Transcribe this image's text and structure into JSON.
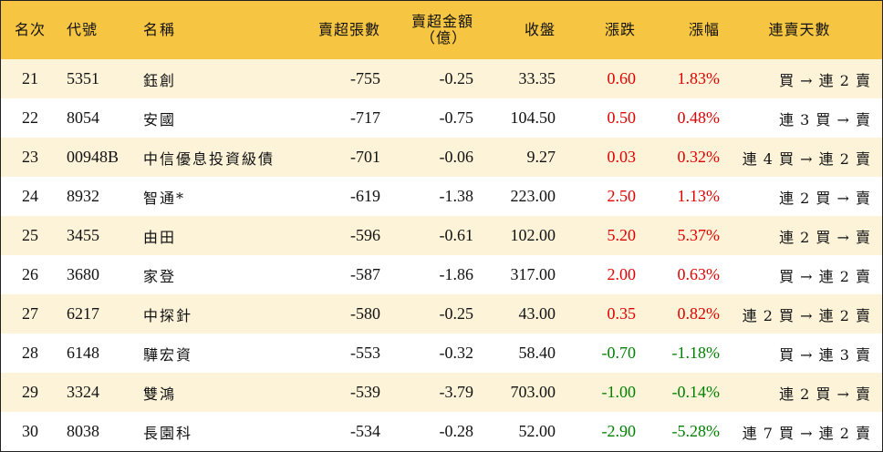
{
  "header": {
    "rank": "名次",
    "code": "代號",
    "name": "名稱",
    "net_sell_lots": "賣超張數",
    "net_sell_amount_line1": "賣超金額",
    "net_sell_amount_line2": "（億）",
    "close": "收盤",
    "change": "漲跌",
    "change_pct": "漲幅",
    "streak": "連賣天數"
  },
  "colors": {
    "header_bg": "#f6c542",
    "row_alt_bg": "#fcf3d9",
    "up": "#e00000",
    "down": "#008000"
  },
  "rows": [
    {
      "rank": "21",
      "code": "5351",
      "name": "鈺創",
      "lots": "-755",
      "amount": "-0.25",
      "close": "33.35",
      "change": "0.60",
      "pct": "1.83%",
      "streak": "買 → 連 2 賣",
      "dir": "up"
    },
    {
      "rank": "22",
      "code": "8054",
      "name": "安國",
      "lots": "-717",
      "amount": "-0.75",
      "close": "104.50",
      "change": "0.50",
      "pct": "0.48%",
      "streak": "連 3 買 → 賣",
      "dir": "up"
    },
    {
      "rank": "23",
      "code": "00948B",
      "name": "中信優息投資級債",
      "lots": "-701",
      "amount": "-0.06",
      "close": "9.27",
      "change": "0.03",
      "pct": "0.32%",
      "streak": "連 4 買 → 連 2 賣",
      "dir": "up"
    },
    {
      "rank": "24",
      "code": "8932",
      "name": "智通*",
      "lots": "-619",
      "amount": "-1.38",
      "close": "223.00",
      "change": "2.50",
      "pct": "1.13%",
      "streak": "連 2 買 → 賣",
      "dir": "up"
    },
    {
      "rank": "25",
      "code": "3455",
      "name": "由田",
      "lots": "-596",
      "amount": "-0.61",
      "close": "102.00",
      "change": "5.20",
      "pct": "5.37%",
      "streak": "連 2 買 → 賣",
      "dir": "up"
    },
    {
      "rank": "26",
      "code": "3680",
      "name": "家登",
      "lots": "-587",
      "amount": "-1.86",
      "close": "317.00",
      "change": "2.00",
      "pct": "0.63%",
      "streak": "買 → 連 2 賣",
      "dir": "up"
    },
    {
      "rank": "27",
      "code": "6217",
      "name": "中探針",
      "lots": "-580",
      "amount": "-0.25",
      "close": "43.00",
      "change": "0.35",
      "pct": "0.82%",
      "streak": "連 2 買 → 連 2 賣",
      "dir": "up"
    },
    {
      "rank": "28",
      "code": "6148",
      "name": "驊宏資",
      "lots": "-553",
      "amount": "-0.32",
      "close": "58.40",
      "change": "-0.70",
      "pct": "-1.18%",
      "streak": "買 → 連 3 賣",
      "dir": "down"
    },
    {
      "rank": "29",
      "code": "3324",
      "name": "雙鴻",
      "lots": "-539",
      "amount": "-3.79",
      "close": "703.00",
      "change": "-1.00",
      "pct": "-0.14%",
      "streak": "連 2 買 → 賣",
      "dir": "down"
    },
    {
      "rank": "30",
      "code": "8038",
      "name": "長園科",
      "lots": "-534",
      "amount": "-0.28",
      "close": "52.00",
      "change": "-2.90",
      "pct": "-5.28%",
      "streak": "連 7 買 → 連 2 賣",
      "dir": "down"
    }
  ]
}
